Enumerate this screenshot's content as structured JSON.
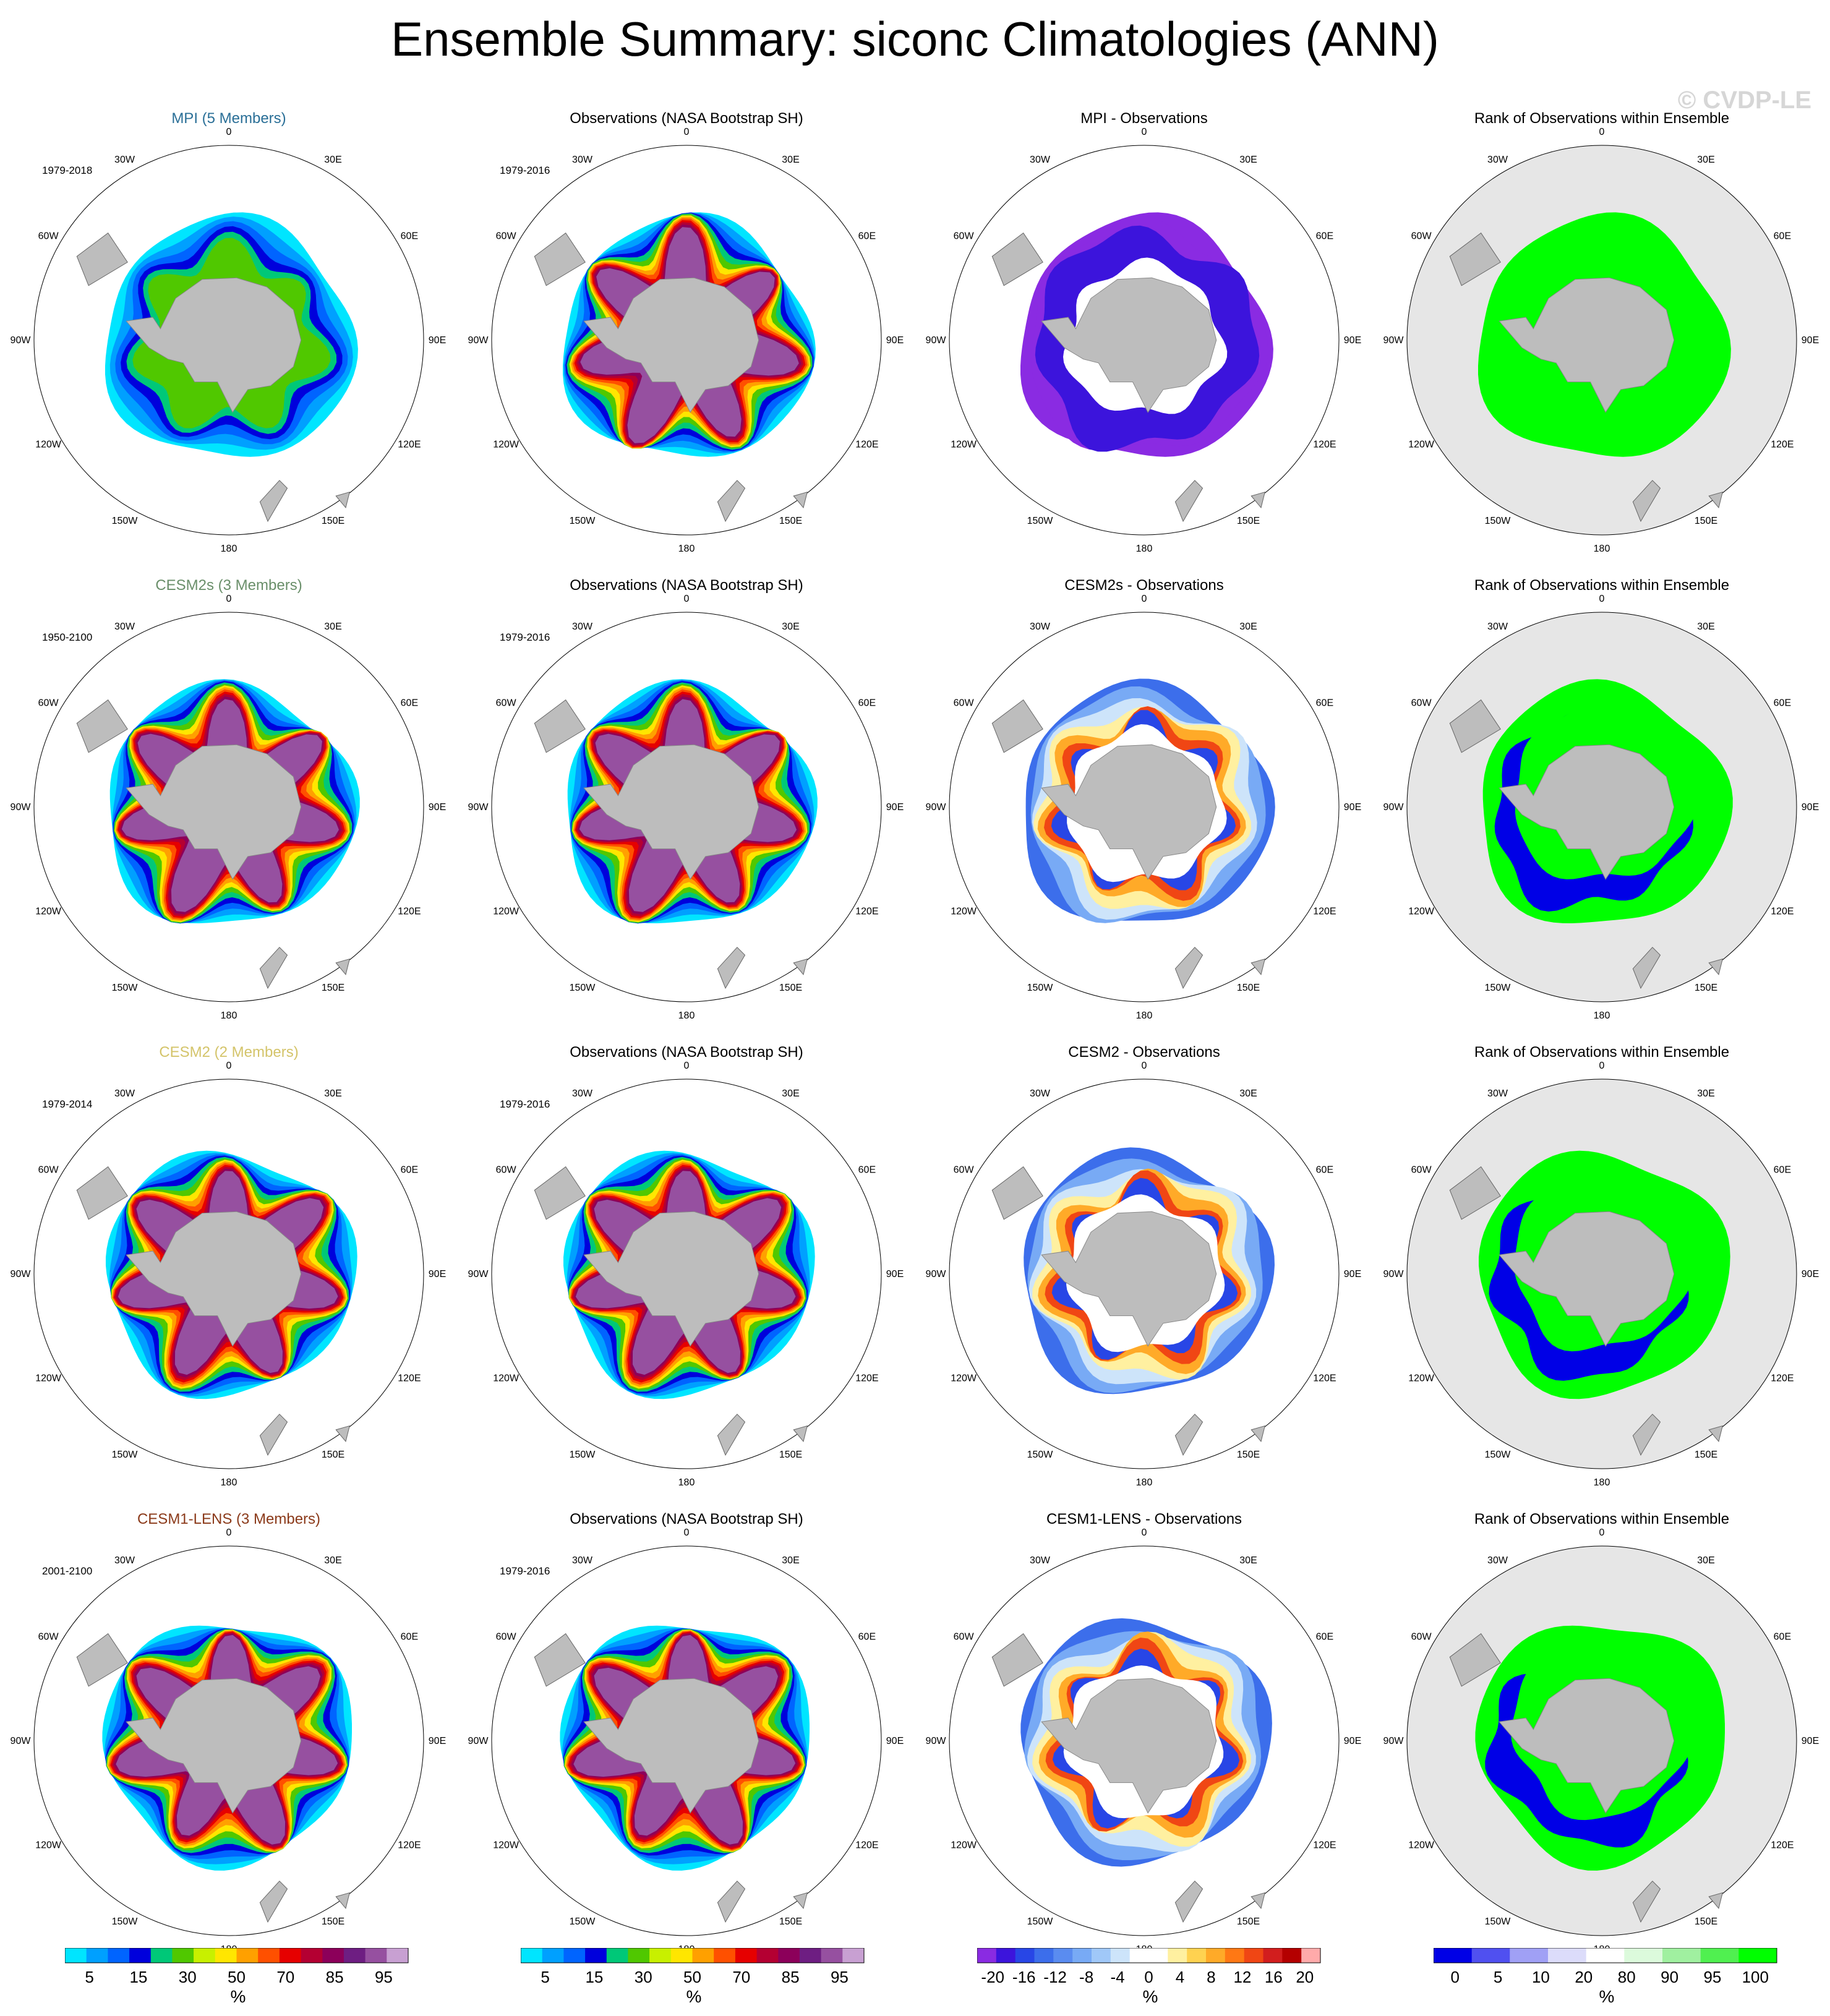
{
  "title": "Ensemble Summary: siconc Climatologies (ANN)",
  "watermark": "© CVDP-LE",
  "colors": {
    "mpi_title": "#2a6f97",
    "cesm2s_title": "#6a8f6a",
    "cesm2_title": "#d4c46a",
    "cesm1_title": "#8b3a1a",
    "land": "#bdbdbd",
    "rank_bg": "#e6e6e6",
    "rank_high": "#00ff00",
    "rank_low": "#0000e6"
  },
  "longitude_labels": [
    "0",
    "30E",
    "60E",
    "90E",
    "120E",
    "150E",
    "180",
    "150W",
    "120W",
    "90W",
    "60W",
    "30W"
  ],
  "rows": [
    {
      "model_title": "MPI (5 Members)",
      "model_period": "1979-2018",
      "obs_title": "Observations (NASA Bootstrap SH)",
      "obs_period": "1979-2016",
      "diff_title": "MPI - Observations",
      "rank_title": "Rank of Observations within Ensemble"
    },
    {
      "model_title": "CESM2s (3 Members)",
      "model_period": "1950-2100",
      "obs_title": "Observations (NASA Bootstrap SH)",
      "obs_period": "1979-2016",
      "diff_title": "CESM2s - Observations",
      "rank_title": "Rank of Observations within Ensemble"
    },
    {
      "model_title": "CESM2 (2 Members)",
      "model_period": "1979-2014",
      "obs_title": "Observations (NASA Bootstrap SH)",
      "obs_period": "1979-2016",
      "diff_title": "CESM2 - Observations",
      "rank_title": "Rank of Observations within Ensemble"
    },
    {
      "model_title": "CESM1-LENS (3 Members)",
      "model_period": "2001-2100",
      "obs_title": "Observations (NASA Bootstrap SH)",
      "obs_period": "1979-2016",
      "diff_title": "CESM1-LENS - Observations",
      "rank_title": "Rank of Observations within Ensemble"
    }
  ],
  "colorbars": [
    {
      "unit": "%",
      "tick_labels": [
        "5",
        "15",
        "30",
        "50",
        "70",
        "85",
        "95"
      ],
      "colors": [
        "#00e5ff",
        "#00a0ff",
        "#0064ff",
        "#0000dc",
        "#00c878",
        "#50c800",
        "#c8f000",
        "#ffe600",
        "#ffa000",
        "#ff5000",
        "#e60000",
        "#b40032",
        "#8c005a",
        "#6e1e82",
        "#9650a0",
        "#c8a0d2"
      ]
    },
    {
      "unit": "%",
      "tick_labels": [
        "5",
        "15",
        "30",
        "50",
        "70",
        "85",
        "95"
      ],
      "colors": [
        "#00e5ff",
        "#00a0ff",
        "#0064ff",
        "#0000dc",
        "#00c878",
        "#50c800",
        "#c8f000",
        "#ffe600",
        "#ffa000",
        "#ff5000",
        "#e60000",
        "#b40032",
        "#8c005a",
        "#6e1e82",
        "#9650a0",
        "#c8a0d2"
      ]
    },
    {
      "unit": "%",
      "tick_labels": [
        "-20",
        "-16",
        "-12",
        "-8",
        "-4",
        "0",
        "4",
        "8",
        "12",
        "16",
        "20"
      ],
      "colors": [
        "#8a2be2",
        "#3c14dc",
        "#2846e6",
        "#3c6eeb",
        "#5a8cf0",
        "#78aaf5",
        "#a0c8f8",
        "#cde4fa",
        "#ffffff",
        "#ffffff",
        "#fff0a0",
        "#ffd250",
        "#ffaa28",
        "#ff7814",
        "#f04614",
        "#d21e1e",
        "#b40000",
        "#ffaaaa"
      ]
    },
    {
      "unit": "%",
      "tick_labels": [
        "0",
        "5",
        "10",
        "20",
        "80",
        "90",
        "95",
        "100"
      ],
      "colors": [
        "#0000e6",
        "#5050f0",
        "#a0a0f5",
        "#dcdcfa",
        "#ffffff",
        "#dcfadc",
        "#a0f0a0",
        "#50f050",
        "#00ff00"
      ]
    }
  ]
}
